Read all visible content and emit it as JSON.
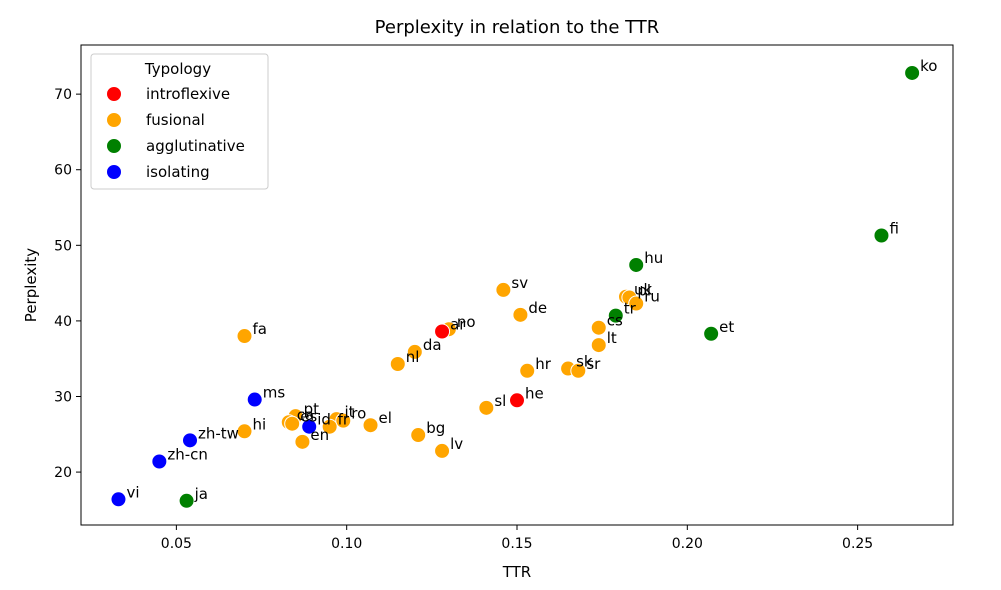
{
  "chart_data": {
    "type": "scatter",
    "title": "Perplexity in relation to the TTR",
    "xlabel": "TTR",
    "ylabel": "Perplexity",
    "xlim": [
      0.022,
      0.278
    ],
    "ylim": [
      13.0,
      76.5
    ],
    "xticks": [
      0.05,
      0.1,
      0.15,
      0.2,
      0.25
    ],
    "xtick_labels": [
      "0.05",
      "0.10",
      "0.15",
      "0.20",
      "0.25"
    ],
    "yticks": [
      20,
      30,
      40,
      50,
      60,
      70
    ],
    "ytick_labels": [
      "20",
      "30",
      "40",
      "50",
      "60",
      "70"
    ],
    "grid": false,
    "legend": {
      "title": "Typology",
      "placement": "top-left",
      "entries": [
        {
          "name": "introflexive",
          "color": "#ff0000"
        },
        {
          "name": "fusional",
          "color": "#ffa500"
        },
        {
          "name": "agglutinative",
          "color": "#008000"
        },
        {
          "name": "isolating",
          "color": "#0000ff"
        }
      ]
    },
    "points": [
      {
        "label": "ko",
        "x": 0.266,
        "y": 72.8,
        "typology": "agglutinative"
      },
      {
        "label": "fi",
        "x": 0.257,
        "y": 51.3,
        "typology": "agglutinative"
      },
      {
        "label": "hu",
        "x": 0.185,
        "y": 47.4,
        "typology": "agglutinative"
      },
      {
        "label": "et",
        "x": 0.207,
        "y": 38.3,
        "typology": "agglutinative"
      },
      {
        "label": "tr",
        "x": 0.179,
        "y": 40.7,
        "typology": "agglutinative"
      },
      {
        "label": "ja",
        "x": 0.053,
        "y": 16.2,
        "typology": "agglutinative"
      },
      {
        "label": "uk",
        "x": 0.182,
        "y": 43.2,
        "typology": "fusional"
      },
      {
        "label": "pl",
        "x": 0.183,
        "y": 43.1,
        "typology": "fusional"
      },
      {
        "label": "ru",
        "x": 0.185,
        "y": 42.3,
        "typology": "fusional"
      },
      {
        "label": "cs",
        "x": 0.174,
        "y": 39.1,
        "typology": "fusional"
      },
      {
        "label": "lt",
        "x": 0.174,
        "y": 36.8,
        "typology": "fusional"
      },
      {
        "label": "sk",
        "x": 0.165,
        "y": 33.7,
        "typology": "fusional"
      },
      {
        "label": "sr",
        "x": 0.168,
        "y": 33.4,
        "typology": "fusional"
      },
      {
        "label": "sv",
        "x": 0.146,
        "y": 44.1,
        "typology": "fusional"
      },
      {
        "label": "de",
        "x": 0.151,
        "y": 40.8,
        "typology": "fusional"
      },
      {
        "label": "hr",
        "x": 0.153,
        "y": 33.4,
        "typology": "fusional"
      },
      {
        "label": "sl",
        "x": 0.141,
        "y": 28.5,
        "typology": "fusional"
      },
      {
        "label": "no",
        "x": 0.13,
        "y": 38.9,
        "typology": "fusional"
      },
      {
        "label": "da",
        "x": 0.12,
        "y": 35.9,
        "typology": "fusional"
      },
      {
        "label": "nl",
        "x": 0.115,
        "y": 34.3,
        "typology": "fusional"
      },
      {
        "label": "el",
        "x": 0.107,
        "y": 26.2,
        "typology": "fusional"
      },
      {
        "label": "bg",
        "x": 0.121,
        "y": 24.9,
        "typology": "fusional"
      },
      {
        "label": "lv",
        "x": 0.128,
        "y": 22.8,
        "typology": "fusional"
      },
      {
        "label": "fa",
        "x": 0.07,
        "y": 38.0,
        "typology": "fusional"
      },
      {
        "label": "hi",
        "x": 0.07,
        "y": 25.4,
        "typology": "fusional"
      },
      {
        "label": "pt",
        "x": 0.085,
        "y": 27.4,
        "typology": "fusional"
      },
      {
        "label": "ca",
        "x": 0.083,
        "y": 26.6,
        "typology": "fusional"
      },
      {
        "label": "es",
        "x": 0.084,
        "y": 26.4,
        "typology": "fusional"
      },
      {
        "label": "en",
        "x": 0.087,
        "y": 24.0,
        "typology": "fusional"
      },
      {
        "label": "it",
        "x": 0.097,
        "y": 27.0,
        "typology": "fusional"
      },
      {
        "label": "ro",
        "x": 0.099,
        "y": 26.8,
        "typology": "fusional"
      },
      {
        "label": "fr",
        "x": 0.095,
        "y": 26.0,
        "typology": "fusional"
      },
      {
        "label": "ar",
        "x": 0.128,
        "y": 38.6,
        "typology": "introflexive"
      },
      {
        "label": "he",
        "x": 0.15,
        "y": 29.5,
        "typology": "introflexive"
      },
      {
        "label": "ms",
        "x": 0.073,
        "y": 29.6,
        "typology": "isolating"
      },
      {
        "label": "id",
        "x": 0.089,
        "y": 26.0,
        "typology": "isolating"
      },
      {
        "label": "zh-tw",
        "x": 0.054,
        "y": 24.2,
        "typology": "isolating"
      },
      {
        "label": "zh-cn",
        "x": 0.045,
        "y": 21.4,
        "typology": "isolating"
      },
      {
        "label": "vi",
        "x": 0.033,
        "y": 16.4,
        "typology": "isolating"
      }
    ]
  }
}
